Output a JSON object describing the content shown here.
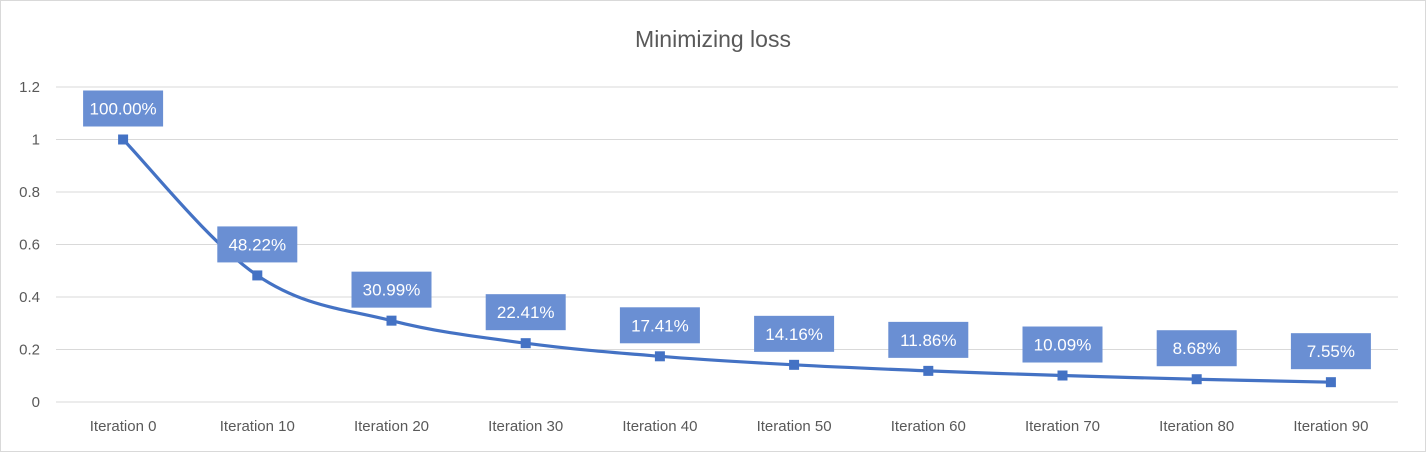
{
  "chart_data": {
    "type": "line",
    "title": "Minimizing loss",
    "categories": [
      "Iteration 0",
      "Iteration 10",
      "Iteration 20",
      "Iteration 30",
      "Iteration 40",
      "Iteration 50",
      "Iteration 60",
      "Iteration 70",
      "Iteration 80",
      "Iteration 90"
    ],
    "values": [
      1.0,
      0.4822,
      0.3099,
      0.2241,
      0.1741,
      0.1416,
      0.1186,
      0.1009,
      0.0868,
      0.0755
    ],
    "data_labels": [
      "100.00%",
      "48.22%",
      "30.99%",
      "22.41%",
      "17.41%",
      "14.16%",
      "11.86%",
      "10.09%",
      "8.68%",
      "7.55%"
    ],
    "y_ticks": [
      "0",
      "0.2",
      "0.4",
      "0.6",
      "0.8",
      "1",
      "1.2"
    ],
    "ylim": [
      0,
      1.2
    ],
    "grid": true,
    "legend": "none",
    "line_style": "smooth",
    "marker": "square",
    "colors": {
      "series": "#4472c4",
      "label_box": "#6a8fd3",
      "label_text": "#ffffff",
      "grid": "#d9d9d9",
      "axis_text": "#595959"
    }
  }
}
